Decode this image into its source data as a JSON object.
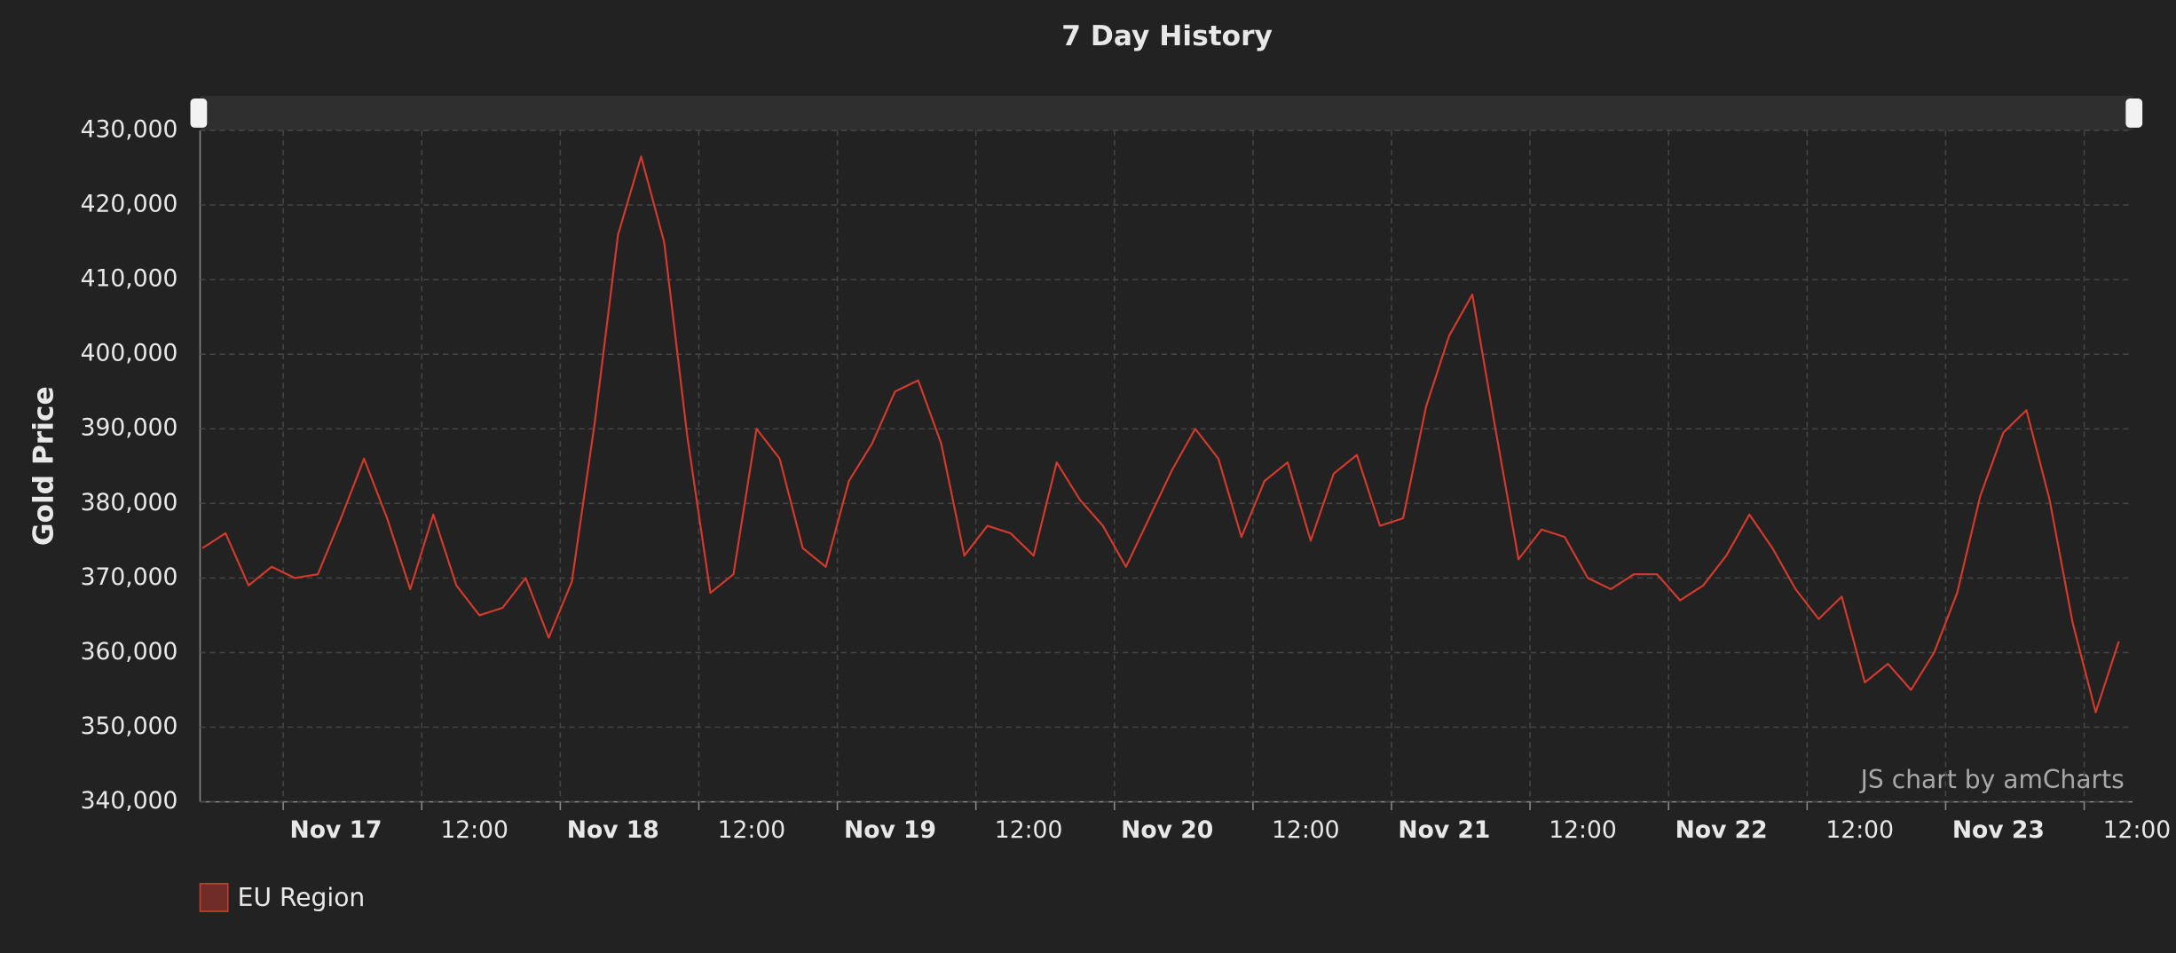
{
  "chart_data": {
    "type": "line",
    "title": "7 Day History",
    "y_label": "Gold Price",
    "credit": "JS chart by amCharts",
    "x": [
      "Nov 16 17:00",
      "Nov 16 19:00",
      "Nov 16 21:00",
      "Nov 16 23:00",
      "Nov 17 01:00",
      "Nov 17 03:00",
      "Nov 17 05:00",
      "Nov 17 07:00",
      "Nov 17 09:00",
      "Nov 17 11:00",
      "Nov 17 13:00",
      "Nov 17 15:00",
      "Nov 17 17:00",
      "Nov 17 19:00",
      "Nov 17 21:00",
      "Nov 17 23:00",
      "Nov 18 01:00",
      "Nov 18 03:00",
      "Nov 18 05:00",
      "Nov 18 07:00",
      "Nov 18 09:00",
      "Nov 18 11:00",
      "Nov 18 13:00",
      "Nov 18 15:00",
      "Nov 18 17:00",
      "Nov 18 19:00",
      "Nov 18 21:00",
      "Nov 18 23:00",
      "Nov 19 01:00",
      "Nov 19 03:00",
      "Nov 19 05:00",
      "Nov 19 07:00",
      "Nov 19 09:00",
      "Nov 19 11:00",
      "Nov 19 13:00",
      "Nov 19 15:00",
      "Nov 19 17:00",
      "Nov 19 19:00",
      "Nov 19 21:00",
      "Nov 19 23:00",
      "Nov 20 01:00",
      "Nov 20 03:00",
      "Nov 20 05:00",
      "Nov 20 07:00",
      "Nov 20 09:00",
      "Nov 20 11:00",
      "Nov 20 13:00",
      "Nov 20 15:00",
      "Nov 20 17:00",
      "Nov 20 19:00",
      "Nov 20 21:00",
      "Nov 20 23:00",
      "Nov 21 01:00",
      "Nov 21 03:00",
      "Nov 21 05:00",
      "Nov 21 07:00",
      "Nov 21 09:00",
      "Nov 21 11:00",
      "Nov 21 13:00",
      "Nov 21 15:00",
      "Nov 21 17:00",
      "Nov 21 19:00",
      "Nov 21 21:00",
      "Nov 21 23:00",
      "Nov 22 01:00",
      "Nov 22 03:00",
      "Nov 22 05:00",
      "Nov 22 07:00",
      "Nov 22 09:00",
      "Nov 22 11:00",
      "Nov 22 13:00",
      "Nov 22 15:00",
      "Nov 22 17:00",
      "Nov 22 19:00",
      "Nov 22 21:00",
      "Nov 22 23:00",
      "Nov 23 01:00",
      "Nov 23 03:00",
      "Nov 23 05:00",
      "Nov 23 07:00",
      "Nov 23 09:00",
      "Nov 23 11:00",
      "Nov 23 13:00",
      "Nov 23 15:00"
    ],
    "series": [
      {
        "name": "EU Region",
        "color": "#d13a2c",
        "values": [
          374000,
          376000,
          369000,
          371500,
          370000,
          370500,
          378000,
          386000,
          378000,
          368500,
          378500,
          369000,
          365000,
          366000,
          370000,
          362000,
          369500,
          391000,
          416000,
          426500,
          415000,
          389000,
          368000,
          370500,
          390000,
          386000,
          374000,
          371500,
          383000,
          388000,
          395000,
          396500,
          388000,
          373000,
          377000,
          376000,
          373000,
          385500,
          380500,
          377000,
          371500,
          378000,
          384500,
          390000,
          386000,
          375500,
          383000,
          385500,
          375000,
          384000,
          386500,
          377000,
          378000,
          393000,
          402500,
          408000,
          390000,
          372500,
          376500,
          375500,
          370000,
          368500,
          370500,
          370500,
          367000,
          369000,
          373000,
          378500,
          374000,
          368500,
          364500,
          367500,
          356000,
          358500,
          355000,
          360000,
          368000,
          381000,
          389500,
          392500,
          380500,
          364000,
          352000,
          361500
        ]
      }
    ],
    "xlim": [
      "Nov 16 16:48",
      "Nov 23 16:12"
    ],
    "xticks": [
      {
        "value": "Nov 17 00:00",
        "label": "Nov 17"
      },
      {
        "value": "Nov 17 12:00",
        "label": "12:00"
      },
      {
        "value": "Nov 18 00:00",
        "label": "Nov 18"
      },
      {
        "value": "Nov 18 12:00",
        "label": "12:00"
      },
      {
        "value": "Nov 19 00:00",
        "label": "Nov 19"
      },
      {
        "value": "Nov 19 12:00",
        "label": "12:00"
      },
      {
        "value": "Nov 20 00:00",
        "label": "Nov 20"
      },
      {
        "value": "Nov 20 12:00",
        "label": "12:00"
      },
      {
        "value": "Nov 21 00:00",
        "label": "Nov 21"
      },
      {
        "value": "Nov 21 12:00",
        "label": "12:00"
      },
      {
        "value": "Nov 22 00:00",
        "label": "Nov 22"
      },
      {
        "value": "Nov 22 12:00",
        "label": "12:00"
      },
      {
        "value": "Nov 23 00:00",
        "label": "Nov 23"
      },
      {
        "value": "Nov 23 12:00",
        "label": "12:00"
      }
    ],
    "ylim": [
      340000,
      430000
    ],
    "yticks": [
      {
        "value": 340000,
        "label": "340,000"
      },
      {
        "value": 350000,
        "label": "350,000"
      },
      {
        "value": 360000,
        "label": "360,000"
      },
      {
        "value": 370000,
        "label": "370,000"
      },
      {
        "value": 380000,
        "label": "380,000"
      },
      {
        "value": 390000,
        "label": "390,000"
      },
      {
        "value": 400000,
        "label": "400,000"
      },
      {
        "value": 410000,
        "label": "410,000"
      },
      {
        "value": 420000,
        "label": "420,000"
      },
      {
        "value": 430000,
        "label": "430,000"
      }
    ],
    "grid": true
  }
}
